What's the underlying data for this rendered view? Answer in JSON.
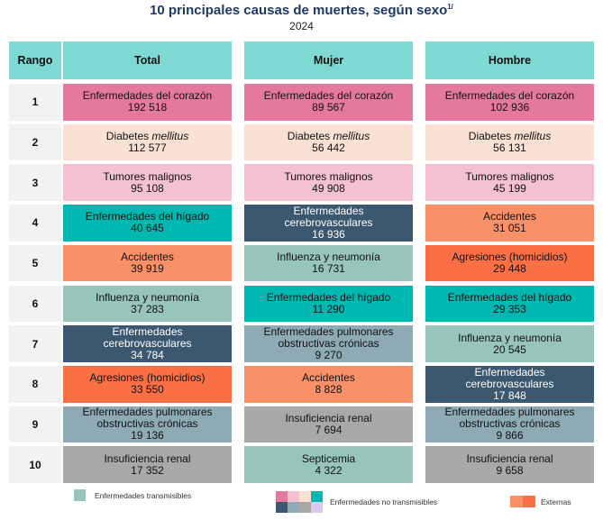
{
  "title": "10 principales causas de muertes, según sexo",
  "title_note": "1/",
  "year": "2024",
  "headers": {
    "rank": "Rango",
    "total": "Total",
    "mujer": "Mujer",
    "hombre": "Hombre"
  },
  "ranks": [
    "1",
    "2",
    "3",
    "4",
    "5",
    "6",
    "7",
    "8",
    "9",
    "10"
  ],
  "colors": {
    "corazon": "#e5789f",
    "diabetes": "#fbe0d4",
    "tumores": "#f3c1d2",
    "higado": "#00b8b2",
    "accidentes": "#fa9067",
    "influenza": "#97c4bb",
    "cerebro": "#3c5870",
    "agresiones": "#fa6f44",
    "pulmonares": "#8eaab5",
    "renal": "#a8a8a8",
    "septicemia": "#97c4bb"
  },
  "total": [
    {
      "name": "Enfermedades del corazón",
      "value": "192 518",
      "color": "corazon"
    },
    {
      "name": "Diabetes",
      "name_em": "mellitus",
      "value": "112 577",
      "color": "diabetes"
    },
    {
      "name": "Tumores malignos",
      "value": "95 108",
      "color": "tumores"
    },
    {
      "name": "Enfermedades del hígado",
      "value": "40 645",
      "color": "higado"
    },
    {
      "name": "Accidentes",
      "value": "39 919",
      "color": "accidentes"
    },
    {
      "name": "Influenza y neumonía",
      "value": "37 283",
      "color": "influenza"
    },
    {
      "name": "Enfermedades cerebrovasculares",
      "value": "34 784",
      "color": "cerebro",
      "dark": true
    },
    {
      "name": "Agresiones (homicidios)",
      "value": "33 550",
      "color": "agresiones"
    },
    {
      "name": "Enfermedades pulmonares obstructivas crónicas",
      "value": "19 136",
      "color": "pulmonares"
    },
    {
      "name": "Insuficiencia renal",
      "value": "17 352",
      "color": "renal"
    }
  ],
  "mujer": [
    {
      "name": "Enfermedades del corazón",
      "value": "89 567",
      "color": "corazon"
    },
    {
      "name": "Diabetes",
      "name_em": "mellitus",
      "value": "56 442",
      "color": "diabetes"
    },
    {
      "name": "Tumores malignos",
      "value": "49 908",
      "color": "tumores"
    },
    {
      "name": "Enfermedades cerebrovasculares",
      "value": "16 936",
      "color": "cerebro",
      "dark": true
    },
    {
      "name": "Influenza y neumonía",
      "value": "16 731",
      "color": "influenza"
    },
    {
      "name": "Enfermedades del hígado",
      "value": "11 290",
      "color": "higado"
    },
    {
      "name": "Enfermedades pulmonares obstructivas crónicas",
      "value": "9 270",
      "color": "pulmonares"
    },
    {
      "name": "Accidentes",
      "value": "8 828",
      "color": "accidentes"
    },
    {
      "name": "Insuficiencia renal",
      "value": "7 694",
      "color": "renal"
    },
    {
      "name": "Septicemia",
      "value": "4 322",
      "color": "septicemia"
    }
  ],
  "hombre": [
    {
      "name": "Enfermedades del corazón",
      "value": "102 936",
      "color": "corazon"
    },
    {
      "name": "Diabetes",
      "name_em": "mellitus",
      "value": "56 131",
      "color": "diabetes"
    },
    {
      "name": "Tumores malignos",
      "value": "45 199",
      "color": "tumores"
    },
    {
      "name": "Accidentes",
      "value": "31 051",
      "color": "accidentes"
    },
    {
      "name": "Agresiones (homicidios)",
      "value": "29 448",
      "color": "agresiones"
    },
    {
      "name": "Enfermedades del hígado",
      "value": "29 353",
      "color": "higado"
    },
    {
      "name": "Influenza y neumonía",
      "value": "20 545",
      "color": "influenza"
    },
    {
      "name": "Enfermedades cerebrovasculares",
      "value": "17 848",
      "color": "cerebro",
      "dark": true
    },
    {
      "name": "Enfermedades pulmonares obstructivas crónicas",
      "value": "9 866",
      "color": "pulmonares"
    },
    {
      "name": "Insuficiencia renal",
      "value": "9 658",
      "color": "renal"
    }
  ],
  "legend": {
    "transmisibles": "Enfermedades transmisibles",
    "no_transmisibles": "Enfermedades no transmisibles",
    "externas": "Externas"
  }
}
